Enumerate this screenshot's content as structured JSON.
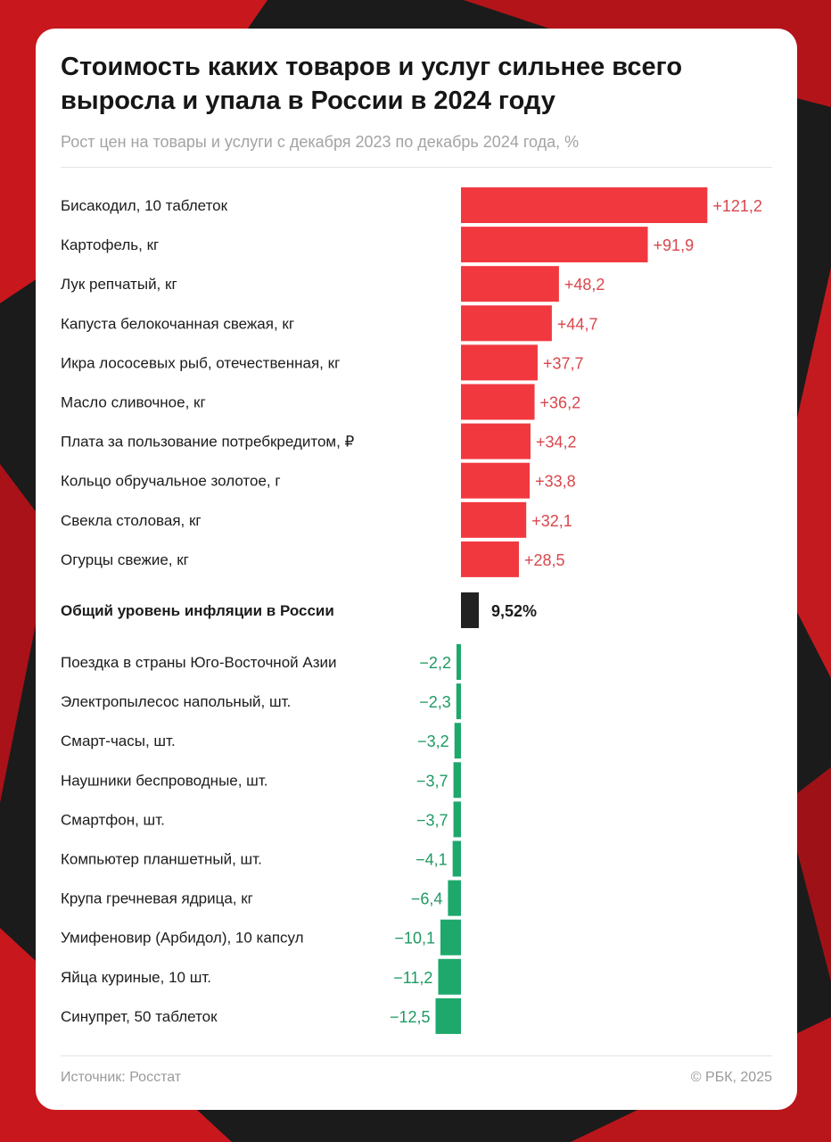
{
  "title": "Стоимость каких товаров и услуг сильнее всего выросла и упала в России в 2024 году",
  "subtitle": "Рост цен на товары и услуги с декабря 2023 по декабрь 2024 года, %",
  "source": "Источник: Росстат",
  "copyright": "© РБК, 2025",
  "colors": {
    "up": "#f2383f",
    "down": "#1ea86b",
    "inflation": "#222222",
    "up_label": "#d9464c",
    "down_label": "#1e9a62"
  },
  "chart_data": {
    "type": "bar",
    "orientation": "horizontal",
    "groups": [
      {
        "name": "up",
        "items": [
          {
            "label": "Бисакодил, 10 таблеток",
            "value": 121.2,
            "value_label": "+121,2"
          },
          {
            "label": "Картофель, кг",
            "value": 91.9,
            "value_label": "+91,9"
          },
          {
            "label": "Лук репчатый, кг",
            "value": 48.2,
            "value_label": "+48,2"
          },
          {
            "label": "Капуста белокочанная свежая, кг",
            "value": 44.7,
            "value_label": "+44,7"
          },
          {
            "label": "Икра лососевых рыб, отечественная, кг",
            "value": 37.7,
            "value_label": "+37,7"
          },
          {
            "label": "Масло сливочное, кг",
            "value": 36.2,
            "value_label": "+36,2"
          },
          {
            "label": "Плата за пользование потребкредитом, ₽",
            "value": 34.2,
            "value_label": "+34,2"
          },
          {
            "label": "Кольцо обручальное золотое, г",
            "value": 33.8,
            "value_label": "+33,8"
          },
          {
            "label": "Свекла столовая, кг",
            "value": 32.1,
            "value_label": "+32,1"
          },
          {
            "label": "Огурцы свежие, кг",
            "value": 28.5,
            "value_label": "+28,5"
          }
        ]
      },
      {
        "name": "inflation",
        "items": [
          {
            "label": "Общий уровень инфляции в России",
            "value": 9.52,
            "value_label": "9,52%"
          }
        ]
      },
      {
        "name": "down",
        "items": [
          {
            "label": "Поездка в страны Юго-Восточной Азии",
            "value": -2.2,
            "value_label": "−2,2"
          },
          {
            "label": "Электропылесос напольный, шт.",
            "value": -2.3,
            "value_label": "−2,3"
          },
          {
            "label": "Смарт-часы, шт.",
            "value": -3.2,
            "value_label": "−3,2"
          },
          {
            "label": "Наушники беспроводные, шт.",
            "value": -3.7,
            "value_label": "−3,7"
          },
          {
            "label": "Смартфон, шт.",
            "value": -3.7,
            "value_label": "−3,7"
          },
          {
            "label": "Компьютер планшетный, шт.",
            "value": -4.1,
            "value_label": "−4,1"
          },
          {
            "label": "Крупа гречневая ядрица, кг",
            "value": -6.4,
            "value_label": "−6,4"
          },
          {
            "label": "Умифеновир (Арбидол), 10 капсул",
            "value": -10.1,
            "value_label": "−10,1"
          },
          {
            "label": "Яйца куриные, 10 шт.",
            "value": -11.2,
            "value_label": "−11,2"
          },
          {
            "label": "Синупрет, 50 таблеток",
            "value": -12.5,
            "value_label": "−12,5"
          }
        ]
      }
    ]
  }
}
